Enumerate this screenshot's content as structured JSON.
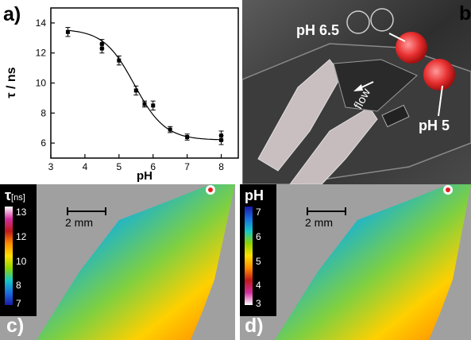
{
  "panel_a": {
    "letter": "a)",
    "chart_data": {
      "type": "scatter",
      "xlabel": "pH",
      "ylabel": "τ / ns",
      "xlim": [
        3,
        8.5
      ],
      "ylim": [
        5,
        15
      ],
      "xticks": [
        3,
        4,
        5,
        6,
        7,
        8
      ],
      "yticks": [
        6,
        8,
        10,
        12,
        14
      ],
      "points": [
        {
          "x": 3.5,
          "y": 13.4,
          "err": 0.3
        },
        {
          "x": 4.5,
          "y": 12.6,
          "err": 0.3
        },
        {
          "x": 4.5,
          "y": 12.3,
          "err": 0.3
        },
        {
          "x": 5.0,
          "y": 11.5,
          "err": 0.3
        },
        {
          "x": 5.5,
          "y": 9.5,
          "err": 0.3
        },
        {
          "x": 5.75,
          "y": 8.6,
          "err": 0.2
        },
        {
          "x": 6.0,
          "y": 8.5,
          "err": 0.3
        },
        {
          "x": 6.5,
          "y": 6.9,
          "err": 0.2
        },
        {
          "x": 7.0,
          "y": 6.4,
          "err": 0.2
        },
        {
          "x": 8.0,
          "y": 6.5,
          "err": 0.3
        },
        {
          "x": 8.0,
          "y": 6.2,
          "err": 0.3
        }
      ],
      "fit": {
        "top": 13.6,
        "bottom": 6.2,
        "x0": 5.45,
        "slope": 0.45
      }
    }
  },
  "panel_b": {
    "letter": "b)",
    "labels": {
      "ph_high": "pH 6.5",
      "ph_low": "pH 5",
      "flow": "flow"
    }
  },
  "panel_c": {
    "letter": "c)",
    "colorbar": {
      "symbol": "τ",
      "unit": "[ns]",
      "ticks": [
        "13",
        "12",
        "10",
        "8",
        "7"
      ]
    },
    "scale": "2 mm"
  },
  "panel_d": {
    "letter": "d)",
    "colorbar": {
      "symbol": "pH",
      "ticks": [
        "7",
        "6",
        "5",
        "4",
        "3"
      ]
    },
    "scale": "2 mm"
  },
  "colors": {
    "jet_scale": [
      "#ffffff",
      "#d32f9f",
      "#c0181c",
      "#ff8c00",
      "#ffe000",
      "#8fd400",
      "#14c8c8",
      "#1a6fe0",
      "#1a1aa8"
    ],
    "ph_scale": [
      "#1a1aa8",
      "#1a6fe0",
      "#14c8c8",
      "#8fd400",
      "#ffe000",
      "#ff8c00",
      "#c0181c",
      "#d32f9f",
      "#ffffff"
    ]
  }
}
